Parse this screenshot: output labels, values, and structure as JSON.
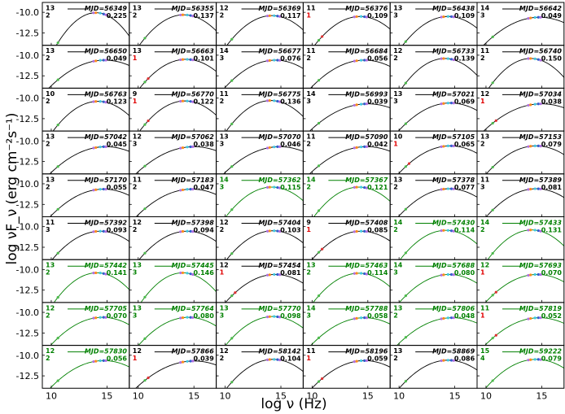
{
  "chart_data": {
    "type": "line",
    "layout": "small-multiples",
    "xlabel": "log ν (Hz)",
    "ylabel": "log νF_ν (erg cm⁻²s⁻¹)",
    "x_ticks": [
      "10",
      "15"
    ],
    "x_tick_values": [
      10,
      15
    ],
    "y_ticks": [
      "-10.0",
      "-12.5"
    ],
    "y_tick_values": [
      -10.0,
      -12.5
    ],
    "xlim": [
      9.2,
      17.0
    ],
    "ylim": [
      -14.0,
      -8.8
    ],
    "panels": [
      {
        "mjd": "MJD=56349",
        "n1": "13",
        "n2": "2",
        "val": "0.225",
        "peak_x": 14.0,
        "peak_y": -10.05,
        "width": 3.6,
        "color": "black",
        "n2_red": false
      },
      {
        "mjd": "MJD=56355",
        "n1": "13",
        "n2": "2",
        "val": "0.137",
        "peak_x": 14.1,
        "peak_y": -10.3,
        "width": 4.2,
        "color": "black",
        "n2_red": false
      },
      {
        "mjd": "MJD=56369",
        "n1": "12",
        "n2": "2",
        "val": "0.117",
        "peak_x": 14.2,
        "peak_y": -10.4,
        "width": 4.3,
        "color": "black",
        "n2_red": false
      },
      {
        "mjd": "MJD=56376",
        "n1": "11",
        "n2": "1",
        "val": "0.109",
        "peak_x": 14.3,
        "peak_y": -10.5,
        "width": 4.4,
        "color": "black",
        "n2_red": true
      },
      {
        "mjd": "MJD=56438",
        "n1": "13",
        "n2": "3",
        "val": "0.109",
        "peak_x": 14.4,
        "peak_y": -10.5,
        "width": 4.4,
        "color": "black",
        "n2_red": false
      },
      {
        "mjd": "MJD=56642",
        "n1": "14",
        "n2": "3",
        "val": "0.049",
        "peak_x": 14.8,
        "peak_y": -10.6,
        "width": 5.5,
        "color": "black",
        "n2_red": false
      },
      {
        "mjd": "MJD=56650",
        "n1": "13",
        "n2": "2",
        "val": "0.049",
        "peak_x": 14.8,
        "peak_y": -10.6,
        "width": 5.5,
        "color": "black",
        "n2_red": false
      },
      {
        "mjd": "MJD=56663",
        "n1": "13",
        "n2": "1",
        "val": "0.101",
        "peak_x": 14.3,
        "peak_y": -10.5,
        "width": 4.5,
        "color": "black",
        "n2_red": true
      },
      {
        "mjd": "MJD=56677",
        "n1": "14",
        "n2": "3",
        "val": "0.076",
        "peak_x": 14.5,
        "peak_y": -10.6,
        "width": 5.0,
        "color": "black",
        "n2_red": false
      },
      {
        "mjd": "MJD=56684",
        "n1": "11",
        "n2": "2",
        "val": "0.056",
        "peak_x": 14.7,
        "peak_y": -10.6,
        "width": 5.3,
        "color": "black",
        "n2_red": false
      },
      {
        "mjd": "MJD=56733",
        "n1": "12",
        "n2": "2",
        "val": "0.139",
        "peak_x": 14.1,
        "peak_y": -10.4,
        "width": 4.1,
        "color": "black",
        "n2_red": false
      },
      {
        "mjd": "MJD=56740",
        "n1": "11",
        "n2": "2",
        "val": "0.150",
        "peak_x": 14.0,
        "peak_y": -10.4,
        "width": 4.0,
        "color": "black",
        "n2_red": false
      },
      {
        "mjd": "MJD=56763",
        "n1": "10",
        "n2": "2",
        "val": "0.123",
        "peak_x": 14.2,
        "peak_y": -10.4,
        "width": 4.3,
        "color": "black",
        "n2_red": false
      },
      {
        "mjd": "MJD=56770",
        "n1": "9",
        "n2": "1",
        "val": "0.122",
        "peak_x": 14.2,
        "peak_y": -10.35,
        "width": 4.3,
        "color": "black",
        "n2_red": true
      },
      {
        "mjd": "MJD=56775",
        "n1": "11",
        "n2": "2",
        "val": "0.136",
        "peak_x": 14.1,
        "peak_y": -10.3,
        "width": 4.2,
        "color": "black",
        "n2_red": false
      },
      {
        "mjd": "MJD=56993",
        "n1": "14",
        "n2": "3",
        "val": "0.039",
        "peak_x": 15.0,
        "peak_y": -10.7,
        "width": 5.8,
        "color": "black",
        "n2_red": false
      },
      {
        "mjd": "MJD=57021",
        "n1": "13",
        "n2": "3",
        "val": "0.069",
        "peak_x": 14.6,
        "peak_y": -10.6,
        "width": 5.1,
        "color": "black",
        "n2_red": false
      },
      {
        "mjd": "MJD=57034",
        "n1": "12",
        "n2": "1",
        "val": "0.038",
        "peak_x": 15.0,
        "peak_y": -10.7,
        "width": 5.8,
        "color": "black",
        "n2_red": true
      },
      {
        "mjd": "MJD=57042",
        "n1": "13",
        "n2": "2",
        "val": "0.045",
        "peak_x": 14.9,
        "peak_y": -10.7,
        "width": 5.6,
        "color": "black",
        "n2_red": false
      },
      {
        "mjd": "MJD=57062",
        "n1": "12",
        "n2": "3",
        "val": "0.038",
        "peak_x": 15.0,
        "peak_y": -10.7,
        "width": 5.8,
        "color": "black",
        "n2_red": false
      },
      {
        "mjd": "MJD=57070",
        "n1": "13",
        "n2": "3",
        "val": "0.046",
        "peak_x": 14.9,
        "peak_y": -10.7,
        "width": 5.6,
        "color": "black",
        "n2_red": false
      },
      {
        "mjd": "MJD=57090",
        "n1": "11",
        "n2": "2",
        "val": "0.042",
        "peak_x": 14.9,
        "peak_y": -10.7,
        "width": 5.7,
        "color": "black",
        "n2_red": false
      },
      {
        "mjd": "MJD=57105",
        "n1": "10",
        "n2": "1",
        "val": "0.065",
        "peak_x": 14.6,
        "peak_y": -10.6,
        "width": 5.1,
        "color": "black",
        "n2_red": true
      },
      {
        "mjd": "MJD=57153",
        "n1": "13",
        "n2": "2",
        "val": "0.079",
        "peak_x": 14.5,
        "peak_y": -10.6,
        "width": 4.9,
        "color": "black",
        "n2_red": false
      },
      {
        "mjd": "MJD=57170",
        "n1": "13",
        "n2": "2",
        "val": "0.055",
        "peak_x": 14.7,
        "peak_y": -10.65,
        "width": 5.3,
        "color": "black",
        "n2_red": false
      },
      {
        "mjd": "MJD=57183",
        "n1": "11",
        "n2": "2",
        "val": "0.047",
        "peak_x": 14.8,
        "peak_y": -10.65,
        "width": 5.5,
        "color": "black",
        "n2_red": false
      },
      {
        "mjd": "MJD=57362",
        "n1": "14",
        "n2": "3",
        "val": "0.115",
        "peak_x": 14.2,
        "peak_y": -10.4,
        "width": 4.4,
        "color": "green",
        "n2_red": false
      },
      {
        "mjd": "MJD=57367",
        "n1": "14",
        "n2": "2",
        "val": "0.121",
        "peak_x": 14.2,
        "peak_y": -10.4,
        "width": 4.3,
        "color": "green",
        "n2_red": false
      },
      {
        "mjd": "MJD=57378",
        "n1": "13",
        "n2": "2",
        "val": "0.077",
        "peak_x": 14.5,
        "peak_y": -10.6,
        "width": 5.0,
        "color": "black",
        "n2_red": false
      },
      {
        "mjd": "MJD=57389",
        "n1": "11",
        "n2": "3",
        "val": "0.081",
        "peak_x": 14.5,
        "peak_y": -10.6,
        "width": 4.9,
        "color": "black",
        "n2_red": false
      },
      {
        "mjd": "MJD=57392",
        "n1": "11",
        "n2": "3",
        "val": "0.093",
        "peak_x": 14.4,
        "peak_y": -10.55,
        "width": 4.7,
        "color": "black",
        "n2_red": false
      },
      {
        "mjd": "MJD=57398",
        "n1": "12",
        "n2": "2",
        "val": "0.094",
        "peak_x": 14.4,
        "peak_y": -10.55,
        "width": 4.7,
        "color": "black",
        "n2_red": false
      },
      {
        "mjd": "MJD=57404",
        "n1": "12",
        "n2": "2",
        "val": "0.103",
        "peak_x": 14.3,
        "peak_y": -10.5,
        "width": 4.5,
        "color": "black",
        "n2_red": false
      },
      {
        "mjd": "MJD=57408",
        "n1": "9",
        "n2": "1",
        "val": "0.085",
        "peak_x": 14.4,
        "peak_y": -10.55,
        "width": 4.8,
        "color": "black",
        "n2_red": true
      },
      {
        "mjd": "MJD=57430",
        "n1": "14",
        "n2": "2",
        "val": "0.114",
        "peak_x": 14.2,
        "peak_y": -10.45,
        "width": 4.4,
        "color": "green",
        "n2_red": false
      },
      {
        "mjd": "MJD=57433",
        "n1": "14",
        "n2": "2",
        "val": "0.131",
        "peak_x": 14.1,
        "peak_y": -10.4,
        "width": 4.2,
        "color": "green",
        "n2_red": false
      },
      {
        "mjd": "MJD=57442",
        "n1": "13",
        "n2": "2",
        "val": "0.141",
        "peak_x": 14.1,
        "peak_y": -10.4,
        "width": 4.1,
        "color": "green",
        "n2_red": false
      },
      {
        "mjd": "MJD=57445",
        "n1": "13",
        "n2": "3",
        "val": "0.146",
        "peak_x": 14.0,
        "peak_y": -10.4,
        "width": 4.0,
        "color": "green",
        "n2_red": false
      },
      {
        "mjd": "MJD=57454",
        "n1": "12",
        "n2": "1",
        "val": "0.081",
        "peak_x": 14.5,
        "peak_y": -10.6,
        "width": 4.9,
        "color": "black",
        "n2_red": true
      },
      {
        "mjd": "MJD=57463",
        "n1": "13",
        "n2": "2",
        "val": "0.114",
        "peak_x": 14.2,
        "peak_y": -10.45,
        "width": 4.4,
        "color": "green",
        "n2_red": false
      },
      {
        "mjd": "MJD=57688",
        "n1": "14",
        "n2": "3",
        "val": "0.080",
        "peak_x": 14.5,
        "peak_y": -10.6,
        "width": 4.9,
        "color": "green",
        "n2_red": false
      },
      {
        "mjd": "MJD=57693",
        "n1": "12",
        "n2": "1",
        "val": "0.070",
        "peak_x": 14.6,
        "peak_y": -10.6,
        "width": 5.1,
        "color": "green",
        "n2_red": true
      },
      {
        "mjd": "MJD=57705",
        "n1": "12",
        "n2": "2",
        "val": "0.070",
        "peak_x": 14.6,
        "peak_y": -10.6,
        "width": 5.1,
        "color": "green",
        "n2_red": false
      },
      {
        "mjd": "MJD=57764",
        "n1": "13",
        "n2": "3",
        "val": "0.080",
        "peak_x": 14.5,
        "peak_y": -10.6,
        "width": 4.9,
        "color": "green",
        "n2_red": false
      },
      {
        "mjd": "MJD=57770",
        "n1": "13",
        "n2": "3",
        "val": "0.098",
        "peak_x": 14.3,
        "peak_y": -10.5,
        "width": 4.6,
        "color": "green",
        "n2_red": false
      },
      {
        "mjd": "MJD=57788",
        "n1": "14",
        "n2": "3",
        "val": "0.058",
        "peak_x": 14.7,
        "peak_y": -10.65,
        "width": 5.3,
        "color": "green",
        "n2_red": false
      },
      {
        "mjd": "MJD=57806",
        "n1": "13",
        "n2": "2",
        "val": "0.048",
        "peak_x": 14.8,
        "peak_y": -10.65,
        "width": 5.5,
        "color": "green",
        "n2_red": false
      },
      {
        "mjd": "MJD=57819",
        "n1": "11",
        "n2": "1",
        "val": "0.052",
        "peak_x": 14.8,
        "peak_y": -10.65,
        "width": 5.4,
        "color": "green",
        "n2_red": true
      },
      {
        "mjd": "MJD=57830",
        "n1": "12",
        "n2": "2",
        "val": "0.056",
        "peak_x": 14.7,
        "peak_y": -10.65,
        "width": 5.3,
        "color": "green",
        "n2_red": false
      },
      {
        "mjd": "MJD=57866",
        "n1": "12",
        "n2": "1",
        "val": "0.039",
        "peak_x": 15.0,
        "peak_y": -10.7,
        "width": 5.8,
        "color": "black",
        "n2_red": true
      },
      {
        "mjd": "MJD=58142",
        "n1": "12",
        "n2": "2",
        "val": "0.104",
        "peak_x": 14.3,
        "peak_y": -10.5,
        "width": 4.5,
        "color": "black",
        "n2_red": false
      },
      {
        "mjd": "MJD=58196",
        "n1": "11",
        "n2": "1",
        "val": "0.059",
        "peak_x": 14.7,
        "peak_y": -10.65,
        "width": 5.2,
        "color": "black",
        "n2_red": true
      },
      {
        "mjd": "MJD=58869",
        "n1": "13",
        "n2": "2",
        "val": "0.086",
        "peak_x": 14.4,
        "peak_y": -10.6,
        "width": 4.8,
        "color": "black",
        "n2_red": false
      },
      {
        "mjd": "MJD=59222",
        "n1": "15",
        "n2": "4",
        "val": "0.079",
        "peak_x": 14.5,
        "peak_y": -10.5,
        "width": 4.9,
        "color": "green",
        "n2_red": false
      }
    ]
  },
  "colors": {
    "black_fit": "#000000",
    "green_fit": "#008000",
    "red_count": "#e00000",
    "point_orange": "#ff8c1a",
    "point_violet": "#b070e0",
    "point_cyan": "#40c8e0",
    "point_green": "#4cbb4c",
    "point_blue": "#3060d0",
    "point_red": "#e03030"
  }
}
